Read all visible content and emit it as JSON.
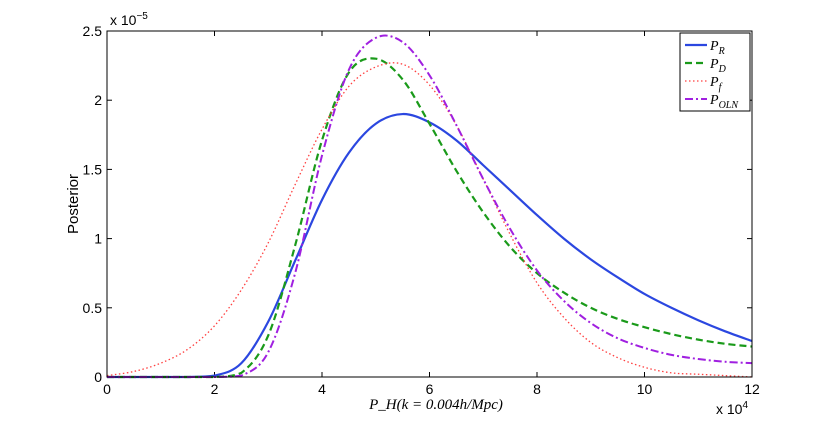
{
  "chart_data": {
    "type": "line",
    "title": "",
    "xlabel": "P_H(k = 0.004h/Mpc)",
    "ylabel": "Posterior",
    "x_multiplier": "x 10^4",
    "y_multiplier": "x 10^-5",
    "xlim": [
      0,
      12
    ],
    "ylim": [
      0,
      2.5
    ],
    "xticks": [
      "0",
      "2",
      "4",
      "6",
      "8",
      "10",
      "12"
    ],
    "yticks": [
      "0",
      "0.5",
      "1",
      "1.5",
      "2",
      "2.5"
    ],
    "legend_position": "top-right",
    "x": [
      0,
      0.5,
      1,
      1.5,
      2,
      2.5,
      3,
      3.5,
      4,
      4.5,
      5,
      5.5,
      6,
      6.5,
      7,
      7.5,
      8,
      8.5,
      9,
      9.5,
      10,
      10.5,
      11,
      11.5,
      12
    ],
    "series": [
      {
        "name": "P_R",
        "legend_main": "P",
        "legend_sub": "R",
        "color": "#2b47e0",
        "dash": "solid",
        "values": [
          0,
          0,
          0,
          0,
          0.01,
          0.1,
          0.4,
          0.84,
          1.28,
          1.62,
          1.83,
          1.9,
          1.84,
          1.71,
          1.53,
          1.35,
          1.17,
          1.0,
          0.85,
          0.72,
          0.6,
          0.5,
          0.41,
          0.33,
          0.26
        ]
      },
      {
        "name": "P_D",
        "legend_main": "P",
        "legend_sub": "D",
        "color": "#1a9a1a",
        "dash": "dashed",
        "values": [
          0,
          0,
          0,
          0,
          0,
          0.03,
          0.3,
          0.95,
          1.71,
          2.2,
          2.3,
          2.15,
          1.83,
          1.49,
          1.19,
          0.94,
          0.75,
          0.61,
          0.5,
          0.42,
          0.36,
          0.31,
          0.27,
          0.24,
          0.22
        ]
      },
      {
        "name": "P_f",
        "legend_main": "P",
        "legend_sub": "f",
        "color": "#ff4040",
        "dash": "dotted",
        "values": [
          0.01,
          0.04,
          0.1,
          0.2,
          0.37,
          0.63,
          0.97,
          1.39,
          1.79,
          2.1,
          2.24,
          2.26,
          2.11,
          1.82,
          1.43,
          1.03,
          0.68,
          0.43,
          0.25,
          0.14,
          0.07,
          0.03,
          0.02,
          0.01,
          0
        ]
      },
      {
        "name": "P_OLN",
        "legend_main": "P",
        "legend_sub": "OLN",
        "color": "#a020e0",
        "dash": "dashdot",
        "values": [
          0,
          0,
          0,
          0,
          0,
          0.01,
          0.18,
          0.75,
          1.6,
          2.22,
          2.45,
          2.42,
          2.18,
          1.82,
          1.43,
          1.07,
          0.77,
          0.55,
          0.39,
          0.28,
          0.21,
          0.16,
          0.13,
          0.11,
          0.1
        ]
      }
    ]
  }
}
